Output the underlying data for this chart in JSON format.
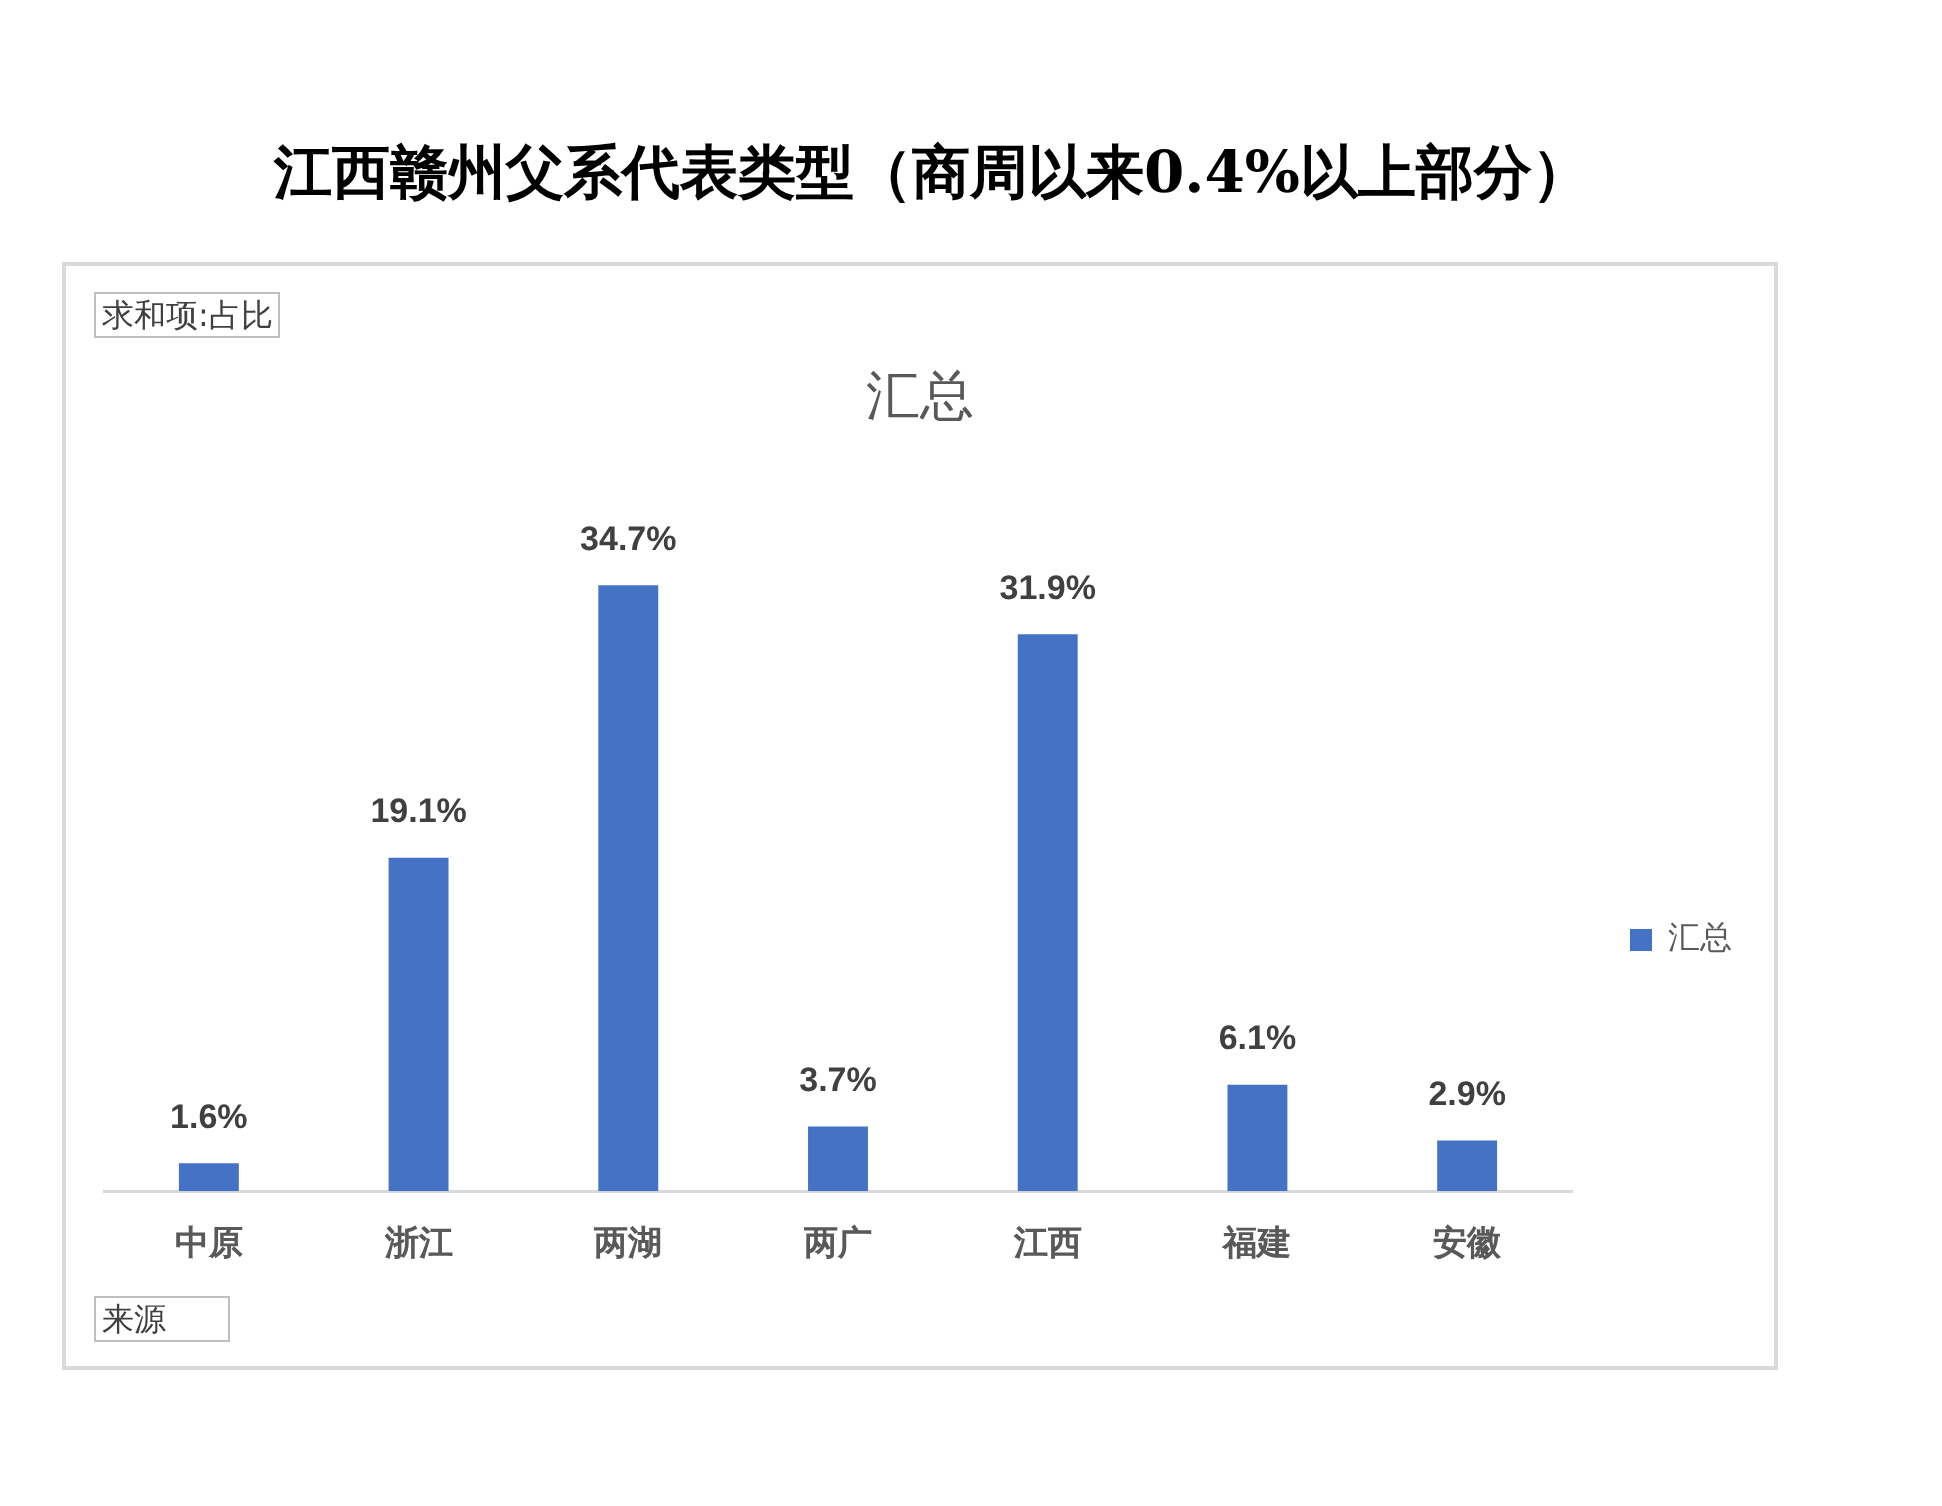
{
  "chart_data": {
    "type": "bar",
    "title": "江西赣州父系代表类型（商周以来0.4%以上部分）",
    "subtitle": "汇总",
    "annotations": [
      "求和项:占比",
      "来源"
    ],
    "categories": [
      "中原",
      "浙江",
      "两湖",
      "两广",
      "江西",
      "福建",
      "安徽"
    ],
    "series": [
      {
        "name": "汇总",
        "color": "#4472c4",
        "values": [
          1.6,
          19.1,
          34.7,
          3.7,
          31.9,
          6.1,
          2.9
        ],
        "value_labels": [
          "1.6%",
          "19.1%",
          "34.7%",
          "3.7%",
          "31.9%",
          "6.1%",
          "2.9%"
        ]
      }
    ],
    "legend": "right",
    "tick_labels": "x"
  }
}
